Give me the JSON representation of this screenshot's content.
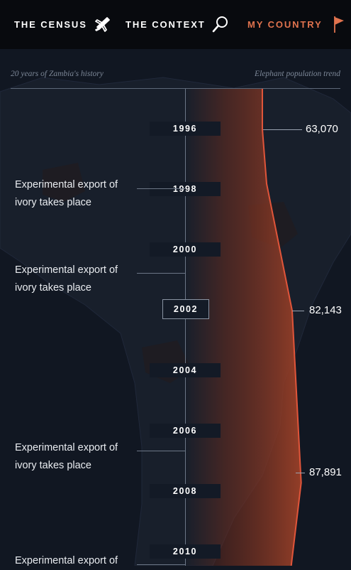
{
  "nav": {
    "census": {
      "label": "THE CENSUS",
      "icon": "airplane-icon"
    },
    "context": {
      "label": "THE CONTEXT",
      "icon": "magnifier-icon"
    },
    "country": {
      "label": "MY COUNTRY",
      "icon": "flag-icon",
      "active": true
    }
  },
  "header": {
    "left": "20 years of Zambia's history",
    "right": "Elephant population trend"
  },
  "timeline": {
    "years": [
      "1996",
      "1998",
      "2000",
      "2002",
      "2004",
      "2006",
      "2008",
      "2010"
    ],
    "selected_year": "2002",
    "events": [
      {
        "text": "Experimental export of ivory takes place"
      },
      {
        "text": "Experimental export of ivory takes place"
      },
      {
        "text": "Experimental export of ivory takes place"
      },
      {
        "text": "Experimental export of"
      }
    ]
  },
  "chart_data": {
    "type": "area",
    "title": "Elephant population trend",
    "x_unit": "year",
    "points": [
      {
        "x": 1996,
        "y": 63070,
        "label": "63,070"
      },
      {
        "x": 2002,
        "y": 82143,
        "label": "82,143"
      },
      {
        "x": 2007.7,
        "y": 87891,
        "label": "87,891"
      }
    ]
  },
  "colors": {
    "accent": "#e0734e",
    "trend_fill": "#8a3a26",
    "trend_line": "#e0553a",
    "background": "#111722",
    "nav_bg": "#080a0e"
  }
}
